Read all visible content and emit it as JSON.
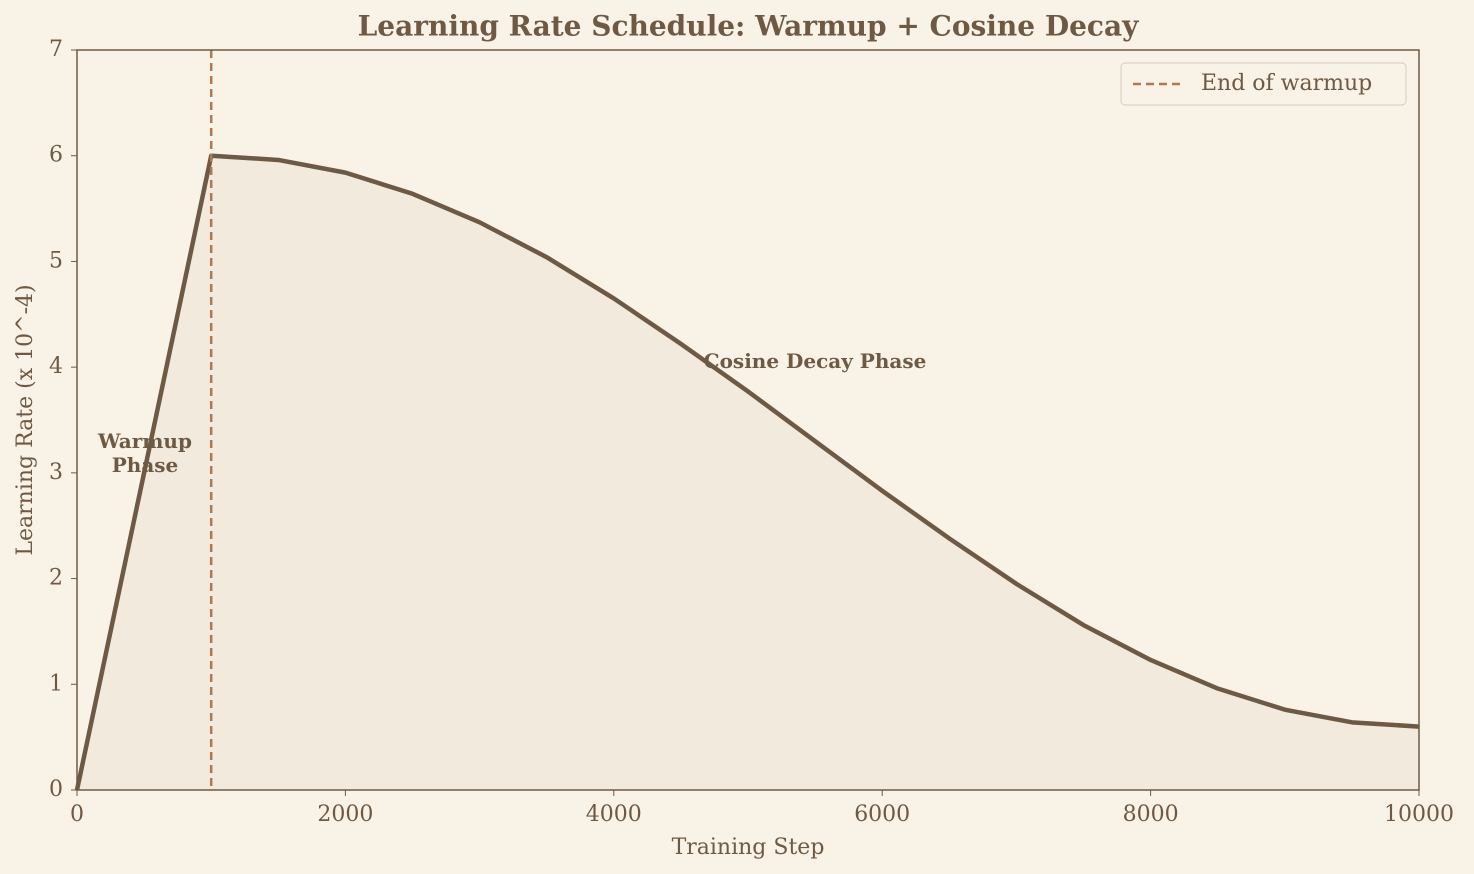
{
  "chart_data": {
    "type": "line",
    "title": "Learning Rate Schedule: Warmup + Cosine Decay",
    "x_label": "Training Step",
    "y_label": "Learning Rate (x 10^-4)",
    "x": [
      0,
      250,
      500,
      750,
      1000,
      1500,
      2000,
      2500,
      3000,
      3500,
      4000,
      4500,
      5000,
      5500,
      6000,
      6500,
      7000,
      7500,
      8000,
      8500,
      9000,
      9500,
      10000
    ],
    "series": [
      {
        "color": "#6e5a44",
        "fill": "#f2eadc",
        "values": [
          0,
          1.5,
          3,
          4.5,
          6,
          5.96,
          5.84,
          5.64,
          5.37,
          5.04,
          4.65,
          4.22,
          3.77,
          3.3,
          2.83,
          2.38,
          1.95,
          1.56,
          1.23,
          0.96,
          0.76,
          0.64,
          0.6
        ]
      }
    ],
    "vline": {
      "x": 1000,
      "label": "End of warmup",
      "color": "#b07a50"
    },
    "annotations": [
      "Warmup\nPhase",
      "Cosine Decay Phase"
    ],
    "xlim": [
      0,
      10000
    ],
    "xticks": [
      0,
      2000,
      4000,
      6000,
      8000,
      10000
    ],
    "ylim": [
      0,
      7
    ],
    "yticks": [
      0,
      1,
      2,
      3,
      4,
      5,
      6,
      7
    ],
    "grid": false,
    "legend": "upper right"
  }
}
